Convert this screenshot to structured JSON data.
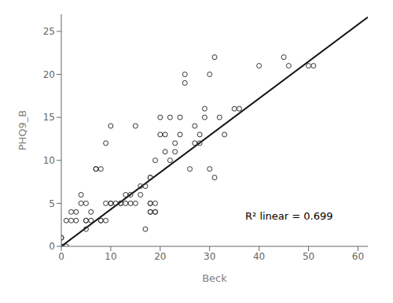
{
  "chart_data": {
    "type": "scatter",
    "xlabel": "Beck",
    "ylabel": "PHQ9_B",
    "annotations": [
      "R² linear = 0.699"
    ],
    "series": [
      {
        "type": "scatter",
        "marker": "circle",
        "color": "#333333",
        "x": [
          0,
          0,
          0,
          1,
          1,
          2,
          2,
          3,
          3,
          4,
          4,
          5,
          5,
          5,
          5,
          6,
          6,
          7,
          7,
          8,
          8,
          8,
          9,
          9,
          9,
          10,
          10,
          10,
          11,
          12,
          12,
          13,
          13,
          14,
          14,
          15,
          15,
          16,
          16,
          17,
          17,
          18,
          18,
          18,
          18,
          18,
          18,
          19,
          19,
          19,
          19,
          20,
          20,
          21,
          21,
          22,
          22,
          23,
          23,
          24,
          24,
          25,
          25,
          26,
          27,
          27,
          28,
          28,
          29,
          29,
          30,
          30,
          31,
          31,
          32,
          33,
          35,
          36,
          40,
          45,
          46,
          50,
          51
        ],
        "values": [
          0,
          1,
          1,
          0,
          3,
          3,
          4,
          3,
          4,
          5,
          6,
          5,
          3,
          3,
          2,
          4,
          3,
          9,
          9,
          9,
          3,
          3,
          12,
          5,
          3,
          14,
          5,
          5,
          5,
          5,
          5,
          5,
          6,
          5,
          6,
          14,
          5,
          7,
          6,
          7,
          2,
          8,
          8,
          5,
          5,
          4,
          4,
          10,
          5,
          4,
          4,
          13,
          15,
          13,
          11,
          15,
          10,
          12,
          11,
          13,
          15,
          19,
          20,
          9,
          12,
          14,
          13,
          12,
          15,
          16,
          20,
          9,
          22,
          8,
          15,
          13,
          16,
          16,
          21,
          22,
          21,
          21,
          21
        ]
      },
      {
        "type": "line",
        "line_style": "solid",
        "color": "#111111",
        "x": [
          0,
          62
        ],
        "values": [
          0,
          26.66
        ]
      }
    ],
    "xlim": [
      0,
      62
    ],
    "ylim": [
      0,
      27
    ],
    "xticks": [
      0,
      10,
      20,
      30,
      40,
      50,
      60
    ],
    "yticks": [
      0,
      5,
      10,
      15,
      20,
      25
    ],
    "grid": false
  }
}
